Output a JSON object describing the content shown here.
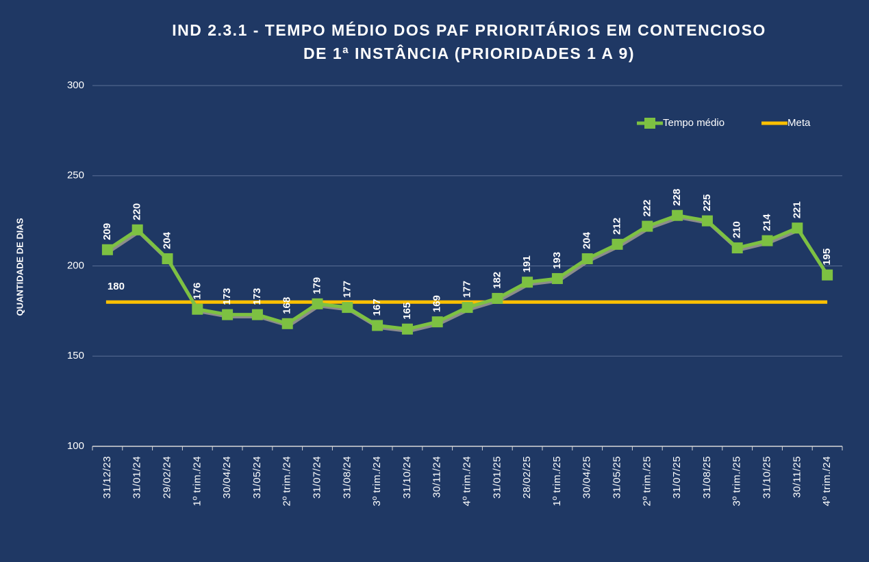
{
  "chart_data": {
    "type": "line",
    "title": [
      "IND 2.3.1 - TEMPO MÉDIO DOS PAF PRIORITÁRIOS EM CONTENCIOSO",
      "DE 1ª INSTÂNCIA (PRIORIDADES 1 A 9)"
    ],
    "y_label": "QUANTIDADE DE DIAS",
    "categories": [
      "31/12/23",
      "31/01/24",
      "29/02/24",
      "1º trim./24",
      "30/04/24",
      "31/05/24",
      "2º trim./24",
      "31/07/24",
      "31/08/24",
      "3º trim./24",
      "31/10/24",
      "30/11/24",
      "4º trim./24",
      "31/01/25",
      "28/02/25",
      "1º trim./25",
      "30/04/25",
      "31/05/25",
      "2º trim./25",
      "31/07/25",
      "31/08/25",
      "3º trim./25",
      "31/10/25",
      "30/11/25",
      "4º trim./24"
    ],
    "series": [
      {
        "name": "Tempo médio",
        "color": "#7dc142",
        "values": [
          209,
          220,
          204,
          176,
          173,
          173,
          168,
          179,
          177,
          167,
          165,
          169,
          177,
          182,
          191,
          193,
          204,
          212,
          222,
          228,
          225,
          210,
          214,
          221,
          195
        ]
      },
      {
        "name": "Meta",
        "color": "#ffc000",
        "values": [
          180,
          180,
          180,
          180,
          180,
          180,
          180,
          180,
          180,
          180,
          180,
          180,
          180,
          180,
          180,
          180,
          180,
          180,
          180,
          180,
          180,
          180,
          180,
          180,
          180
        ]
      }
    ],
    "ylim": [
      100,
      300
    ],
    "yticks": [
      100,
      150,
      200,
      250,
      300
    ],
    "grid": true,
    "legend": "top-right"
  }
}
